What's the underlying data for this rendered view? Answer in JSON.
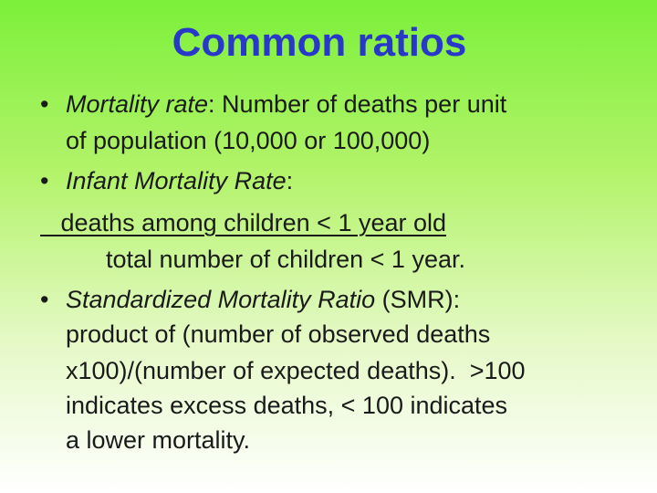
{
  "slide": {
    "title": "Common ratios",
    "bullet_char": "•",
    "b1": {
      "term": "Mortality rate",
      "rest_line1": ": Number of deaths per unit",
      "line2": "of population (10,000 or 100,000)"
    },
    "b2": {
      "term": "Infant Mortality Rate",
      "colon": ":",
      "numerator": "   deaths among children < 1 year old",
      "denominator": "total number of children < 1 year."
    },
    "b3": {
      "term": "Standardized Mortality Ratio",
      "rest_line1": " (SMR):",
      "line2": "product of (number of observed deaths",
      "line3": "x100)/(number of expected deaths).  >100",
      "line4": "indicates excess deaths, < 100 indicates",
      "line5": "a lower mortality."
    }
  }
}
